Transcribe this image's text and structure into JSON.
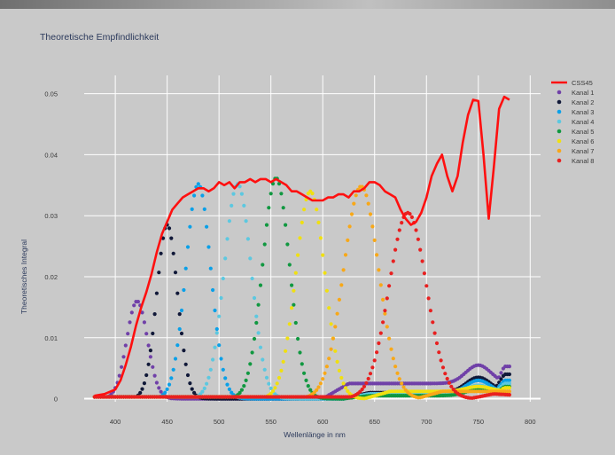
{
  "chart_data": {
    "type": "scatter",
    "title": "Theoretische Empfindlichkeit",
    "xlabel": "Wellenlänge in nm",
    "ylabel": "Theoretisches Integral",
    "xlim": [
      370,
      810
    ],
    "ylim": [
      -0.0005,
      0.053
    ],
    "xticks": [
      400,
      450,
      500,
      550,
      600,
      650,
      700,
      750,
      800
    ],
    "yticks": [
      0,
      0.01,
      0.02,
      0.03,
      0.04,
      0.05
    ],
    "ytick_labels": [
      "0",
      "0.01",
      "0.02",
      "0.03",
      "0.04",
      "0.05"
    ],
    "grid": true,
    "legend_position": "top-right",
    "line_series": {
      "name": "CSS45",
      "color": "#ff1010",
      "x": [
        380,
        390,
        400,
        405,
        410,
        415,
        420,
        425,
        430,
        435,
        440,
        445,
        450,
        455,
        460,
        465,
        470,
        475,
        480,
        485,
        490,
        495,
        500,
        505,
        510,
        515,
        520,
        525,
        530,
        535,
        540,
        545,
        550,
        555,
        560,
        565,
        570,
        575,
        580,
        585,
        590,
        595,
        600,
        605,
        610,
        615,
        620,
        625,
        630,
        635,
        640,
        645,
        650,
        655,
        660,
        665,
        670,
        675,
        680,
        685,
        690,
        695,
        700,
        705,
        710,
        715,
        720,
        725,
        730,
        735,
        740,
        745,
        750,
        755,
        760,
        765,
        770,
        775,
        780
      ],
      "y": [
        0.0005,
        0.0008,
        0.0015,
        0.003,
        0.0055,
        0.0085,
        0.012,
        0.015,
        0.0175,
        0.0205,
        0.024,
        0.027,
        0.029,
        0.031,
        0.032,
        0.033,
        0.0335,
        0.034,
        0.0345,
        0.0345,
        0.034,
        0.0345,
        0.0355,
        0.035,
        0.0355,
        0.0345,
        0.0355,
        0.0355,
        0.036,
        0.0355,
        0.036,
        0.036,
        0.0355,
        0.036,
        0.0355,
        0.035,
        0.034,
        0.034,
        0.0335,
        0.033,
        0.0325,
        0.0325,
        0.0325,
        0.033,
        0.033,
        0.0335,
        0.0335,
        0.033,
        0.034,
        0.034,
        0.0345,
        0.0355,
        0.0355,
        0.035,
        0.034,
        0.0335,
        0.033,
        0.031,
        0.0295,
        0.0285,
        0.029,
        0.0305,
        0.033,
        0.0365,
        0.0385,
        0.04,
        0.0365,
        0.034,
        0.0365,
        0.042,
        0.0465,
        0.049,
        0.0488,
        0.04,
        0.0295,
        0.038,
        0.0475,
        0.0495,
        0.049
      ]
    },
    "series": [
      {
        "name": "Kanal 1",
        "color": "#7040a8",
        "peak_x": 421,
        "peak_y": 0.016,
        "width": 10,
        "tail_start": 600,
        "tail_level": 0.0025,
        "tail_bump_x": 750,
        "tail_bump_y": 0.0055,
        "tail_end_y": 0.0053
      },
      {
        "name": "Kanal 2",
        "color": "#101838",
        "peak_x": 450,
        "peak_y": 0.0285,
        "width": 10,
        "tail_start": 620,
        "tail_level": 0.001,
        "tail_bump_x": 750,
        "tail_bump_y": 0.0035,
        "tail_end_y": 0.004
      },
      {
        "name": "Kanal 3",
        "color": "#0aa0e8",
        "peak_x": 480,
        "peak_y": 0.0352,
        "width": 12,
        "tail_start": 620,
        "tail_level": 0.0008,
        "tail_bump_x": 750,
        "tail_bump_y": 0.003,
        "tail_end_y": 0.003
      },
      {
        "name": "Kanal 4",
        "color": "#5cc8e0",
        "peak_x": 518,
        "peak_y": 0.0352,
        "width": 13,
        "tail_start": 620,
        "tail_level": 0.0008,
        "tail_bump_x": 750,
        "tail_bump_y": 0.0022,
        "tail_end_y": 0.0025
      },
      {
        "name": "Kanal 5",
        "color": "#109840",
        "peak_x": 555,
        "peak_y": 0.0362,
        "width": 13,
        "tail_start": 620,
        "tail_level": 0.0005,
        "tail_bump_x": 750,
        "tail_bump_y": 0.0015,
        "tail_end_y": 0.002
      },
      {
        "name": "Kanal 6",
        "color": "#f0e010",
        "peak_x": 588,
        "peak_y": 0.034,
        "width": 14,
        "tail_start": 640,
        "tail_level": 0.0012,
        "tail_bump_x": 750,
        "tail_bump_y": 0.002,
        "tail_end_y": 0.0018
      },
      {
        "name": "Kanal 7",
        "color": "#f8a818",
        "peak_x": 637,
        "peak_y": 0.0348,
        "width": 17,
        "tail_start": 690,
        "tail_level": 0.0012,
        "tail_bump_x": 750,
        "tail_bump_y": 0.0012,
        "tail_end_y": 0.0012
      },
      {
        "name": "Kanal 8",
        "color": "#e82020",
        "peak_x": 682,
        "peak_y": 0.0305,
        "width": 18,
        "tail_start": 740,
        "tail_level": 0.0006,
        "tail_bump_x": 760,
        "tail_bump_y": 0.0008,
        "tail_end_y": 0.0009
      }
    ]
  }
}
